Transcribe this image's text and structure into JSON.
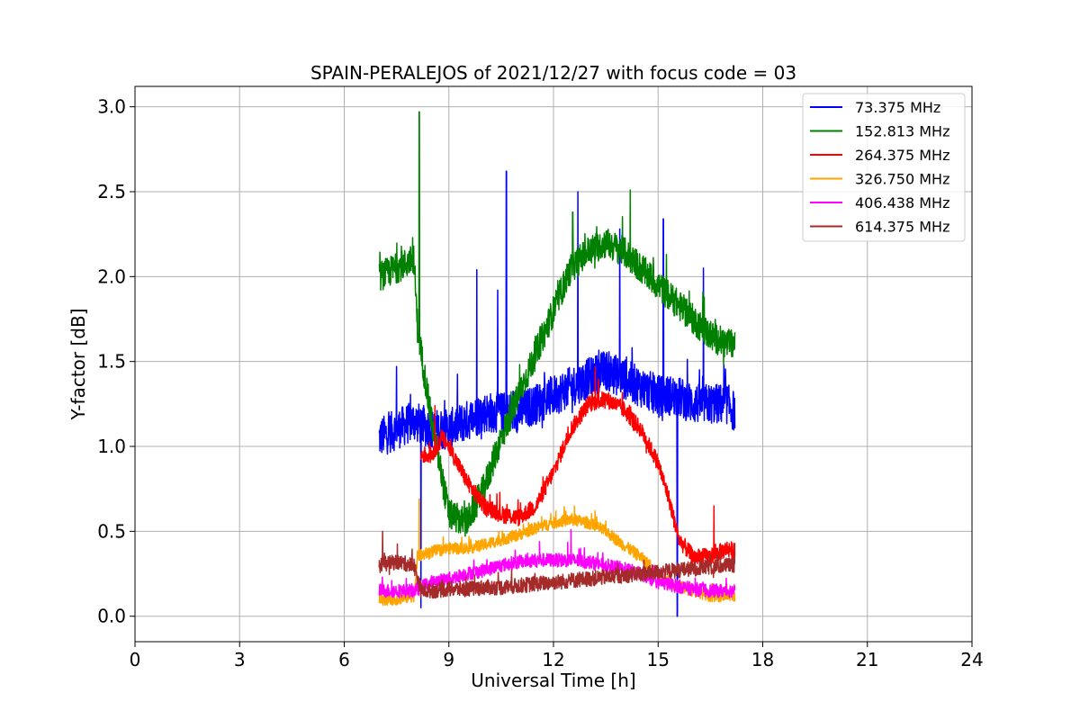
{
  "chart_data": {
    "type": "line",
    "title": "SPAIN-PERALEJOS of 2021/12/27 with focus code = 03",
    "xlabel": "Universal Time [h]",
    "ylabel": "Y-factor [dB]",
    "xlim": [
      0,
      24
    ],
    "ylim": [
      -0.15,
      3.12
    ],
    "xticks": [
      0,
      3,
      6,
      9,
      12,
      15,
      18,
      21,
      24
    ],
    "yticks": [
      0.0,
      0.5,
      1.0,
      1.5,
      2.0,
      2.5,
      3.0
    ],
    "ytick_labels": [
      "0.0",
      "0.5",
      "1.0",
      "1.5",
      "2.0",
      "2.5",
      "3.0"
    ],
    "grid": true,
    "legend_position": "top-right",
    "series": [
      {
        "name": "  73.375 MHz",
        "color": "#0000ff",
        "noise": 0.12,
        "x": [
          7.0,
          7.5,
          8.0,
          8.5,
          9.0,
          9.5,
          10.0,
          10.5,
          11.0,
          11.5,
          12.0,
          12.5,
          13.0,
          13.5,
          14.0,
          14.5,
          15.0,
          15.5,
          16.0,
          16.5,
          17.0,
          17.2
        ],
        "y": [
          1.05,
          1.1,
          1.15,
          1.1,
          1.1,
          1.15,
          1.2,
          1.2,
          1.2,
          1.25,
          1.3,
          1.35,
          1.4,
          1.45,
          1.4,
          1.35,
          1.3,
          1.3,
          1.25,
          1.25,
          1.25,
          1.2
        ],
        "spikes": [
          [
            7.5,
            1.47
          ],
          [
            8.2,
            0.05
          ],
          [
            9.8,
            2.04
          ],
          [
            10.65,
            2.62
          ],
          [
            10.4,
            1.92
          ],
          [
            12.7,
            2.5
          ],
          [
            13.9,
            2.28
          ],
          [
            15.15,
            2.34
          ],
          [
            15.55,
            0.0
          ],
          [
            16.3,
            2.05
          ]
        ]
      },
      {
        "name": "152.813 MHz",
        "color": "#008000",
        "noise": 0.09,
        "x": [
          7.0,
          7.5,
          8.0,
          8.1,
          8.5,
          9.0,
          9.5,
          10.0,
          10.5,
          11.0,
          11.5,
          12.0,
          12.5,
          13.0,
          13.5,
          14.0,
          14.5,
          15.0,
          15.5,
          16.0,
          16.5,
          17.0,
          17.2
        ],
        "y": [
          2.0,
          2.05,
          2.1,
          1.7,
          1.15,
          0.6,
          0.55,
          0.75,
          1.05,
          1.3,
          1.55,
          1.8,
          2.05,
          2.15,
          2.2,
          2.15,
          2.05,
          1.95,
          1.85,
          1.75,
          1.65,
          1.6,
          1.6
        ],
        "spikes": [
          [
            8.15,
            2.97
          ],
          [
            14.2,
            2.51
          ],
          [
            12.55,
            2.38
          ]
        ]
      },
      {
        "name": "264.375 MHz",
        "color": "#ff0000",
        "noise": 0.05,
        "x": [
          8.2,
          8.5,
          8.8,
          9.0,
          9.5,
          10.0,
          10.5,
          11.0,
          11.5,
          12.0,
          12.5,
          13.0,
          13.5,
          14.0,
          14.5,
          15.0,
          15.3,
          15.6,
          16.0,
          16.5,
          17.0,
          17.2
        ],
        "y": [
          0.95,
          0.95,
          1.05,
          1.0,
          0.8,
          0.65,
          0.6,
          0.58,
          0.65,
          0.85,
          1.1,
          1.25,
          1.28,
          1.22,
          1.1,
          0.9,
          0.7,
          0.45,
          0.35,
          0.35,
          0.4,
          0.38
        ],
        "spikes": [
          [
            8.6,
            1.24
          ],
          [
            13.2,
            1.47
          ],
          [
            16.6,
            0.65
          ]
        ]
      },
      {
        "name": "326.750 MHz",
        "color": "#ffa500",
        "noise": 0.035,
        "x": [
          7.0,
          7.5,
          8.0,
          8.1,
          8.5,
          9.0,
          9.5,
          10.0,
          10.5,
          11.0,
          11.5,
          12.0,
          12.5,
          13.0,
          13.5,
          14.0,
          14.5,
          15.0,
          15.5,
          16.0,
          16.5,
          17.0,
          17.2
        ],
        "y": [
          0.1,
          0.1,
          0.12,
          0.35,
          0.38,
          0.4,
          0.4,
          0.42,
          0.45,
          0.48,
          0.52,
          0.55,
          0.57,
          0.55,
          0.5,
          0.42,
          0.35,
          0.25,
          0.18,
          0.15,
          0.12,
          0.12,
          0.12
        ],
        "spikes": [
          [
            8.15,
            0.69
          ],
          [
            12.6,
            0.65
          ]
        ]
      },
      {
        "name": "406.438 MHz",
        "color": "#ff00ff",
        "noise": 0.04,
        "x": [
          7.0,
          7.5,
          8.0,
          8.5,
          9.0,
          9.5,
          10.0,
          10.5,
          11.0,
          11.5,
          12.0,
          12.5,
          13.0,
          13.5,
          14.0,
          14.5,
          15.0,
          15.5,
          16.0,
          16.5,
          17.0,
          17.2
        ],
        "y": [
          0.15,
          0.15,
          0.15,
          0.2,
          0.22,
          0.25,
          0.27,
          0.3,
          0.32,
          0.33,
          0.33,
          0.33,
          0.32,
          0.3,
          0.28,
          0.25,
          0.2,
          0.18,
          0.16,
          0.15,
          0.15,
          0.15
        ],
        "spikes": [
          [
            12.5,
            0.51
          ],
          [
            11.6,
            0.44
          ]
        ]
      },
      {
        "name": "614.375 MHz",
        "color": "#a52a2a",
        "noise": 0.045,
        "x": [
          7.0,
          7.5,
          8.0,
          8.2,
          8.5,
          9.0,
          9.5,
          10.0,
          10.5,
          11.0,
          11.5,
          12.0,
          12.5,
          13.0,
          13.5,
          14.0,
          14.5,
          15.0,
          15.5,
          16.0,
          16.5,
          17.0,
          17.2
        ],
        "y": [
          0.3,
          0.32,
          0.3,
          0.15,
          0.15,
          0.16,
          0.16,
          0.17,
          0.17,
          0.18,
          0.19,
          0.2,
          0.21,
          0.22,
          0.23,
          0.24,
          0.25,
          0.26,
          0.27,
          0.28,
          0.29,
          0.3,
          0.3
        ],
        "spikes": [
          [
            7.1,
            0.5
          ],
          [
            17.2,
            0.43
          ]
        ]
      }
    ]
  }
}
